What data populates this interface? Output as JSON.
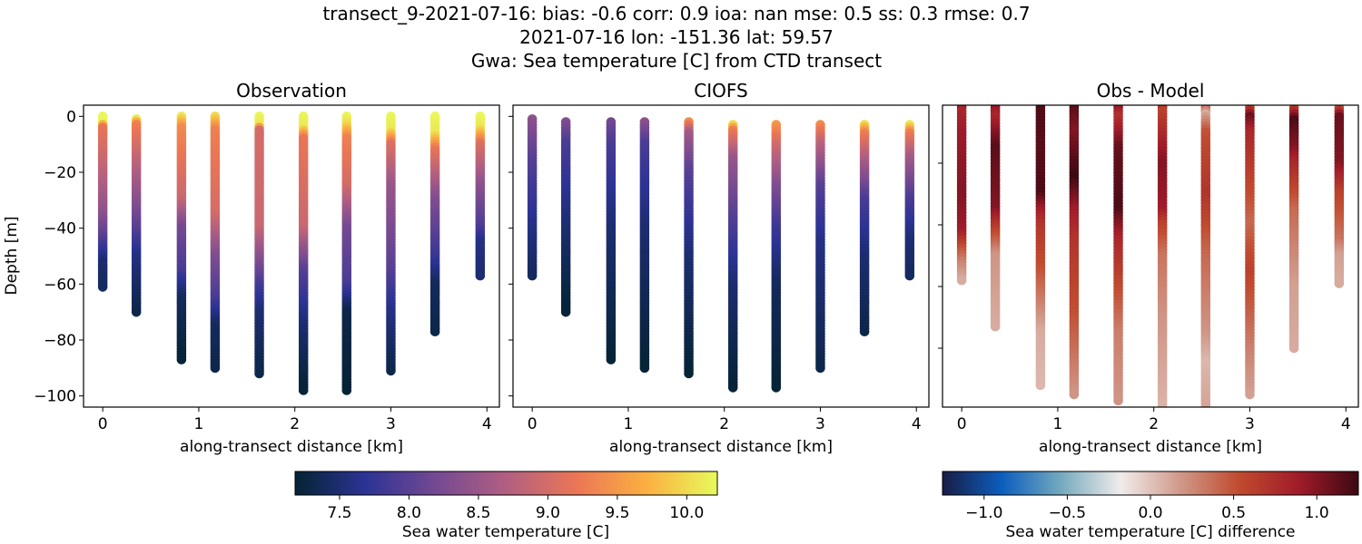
{
  "title_lines": [
    "transect_9-2021-07-16: bias: -0.6  corr: 0.9  ioa: nan  mse: 0.5  ss: 0.3  rmse: 0.7",
    "2021-07-16 lon: -151.36 lat: 59.57",
    "Gwa: Sea temperature [C] from CTD transect"
  ],
  "chart_data": [
    {
      "type": "scatter",
      "title": "Observation",
      "xlabel": "along-transect distance [km]",
      "ylabel": "Depth [m]",
      "xlim": [
        -0.2,
        4.13
      ],
      "ylim": [
        -104,
        4
      ],
      "xticks": [
        "0",
        "1",
        "2",
        "3",
        "4"
      ],
      "yticks": [
        "0",
        "−20",
        "−40",
        "−60",
        "−80",
        "−100"
      ],
      "colormap": "thermal",
      "vmin": 7.18,
      "vmax": 10.22,
      "stations": [
        {
          "x": 0.0,
          "profile": [
            [
              0,
              10.2
            ],
            [
              2,
              10.2
            ],
            [
              4,
              9.2
            ],
            [
              20,
              8.8
            ],
            [
              35,
              8.4
            ],
            [
              45,
              7.9
            ],
            [
              52,
              7.5
            ],
            [
              61,
              7.4
            ]
          ]
        },
        {
          "x": 0.35,
          "profile": [
            [
              1,
              10.1
            ],
            [
              3,
              9.3
            ],
            [
              20,
              8.7
            ],
            [
              35,
              8.2
            ],
            [
              50,
              7.6
            ],
            [
              70,
              7.3
            ]
          ]
        },
        {
          "x": 0.82,
          "profile": [
            [
              0,
              10.1
            ],
            [
              4,
              9.4
            ],
            [
              30,
              8.9
            ],
            [
              40,
              8.2
            ],
            [
              55,
              7.9
            ],
            [
              65,
              7.4
            ],
            [
              87,
              7.2
            ]
          ]
        },
        {
          "x": 1.17,
          "profile": [
            [
              0,
              10.0
            ],
            [
              5,
              9.3
            ],
            [
              35,
              9.0
            ],
            [
              50,
              8.3
            ],
            [
              65,
              7.9
            ],
            [
              75,
              7.4
            ],
            [
              90,
              7.3
            ]
          ]
        },
        {
          "x": 1.63,
          "profile": [
            [
              0,
              10.2
            ],
            [
              3,
              10.1
            ],
            [
              5,
              9.0
            ],
            [
              40,
              8.9
            ],
            [
              60,
              7.9
            ],
            [
              70,
              7.5
            ],
            [
              92,
              7.3
            ]
          ]
        },
        {
          "x": 2.09,
          "profile": [
            [
              0,
              10.2
            ],
            [
              4,
              10.1
            ],
            [
              8,
              9.2
            ],
            [
              40,
              8.9
            ],
            [
              55,
              8.0
            ],
            [
              75,
              7.5
            ],
            [
              98,
              7.2
            ]
          ]
        },
        {
          "x": 2.54,
          "profile": [
            [
              0,
              10.2
            ],
            [
              3,
              10.0
            ],
            [
              8,
              9.3
            ],
            [
              25,
              9.0
            ],
            [
              40,
              8.2
            ],
            [
              60,
              7.9
            ],
            [
              70,
              7.3
            ],
            [
              98,
              7.2
            ]
          ]
        },
        {
          "x": 3.0,
          "profile": [
            [
              0,
              10.2
            ],
            [
              5,
              10.1
            ],
            [
              10,
              9.1
            ],
            [
              25,
              8.5
            ],
            [
              55,
              8.0
            ],
            [
              70,
              7.6
            ],
            [
              91,
              7.3
            ]
          ]
        },
        {
          "x": 3.46,
          "profile": [
            [
              0,
              10.2
            ],
            [
              6,
              10.1
            ],
            [
              12,
              9.2
            ],
            [
              30,
              8.3
            ],
            [
              50,
              7.8
            ],
            [
              60,
              7.4
            ],
            [
              77,
              7.3
            ]
          ]
        },
        {
          "x": 3.93,
          "profile": [
            [
              0,
              10.2
            ],
            [
              4,
              10.1
            ],
            [
              10,
              9.1
            ],
            [
              25,
              8.4
            ],
            [
              40,
              7.9
            ],
            [
              45,
              7.6
            ],
            [
              57,
              7.5
            ]
          ]
        }
      ]
    },
    {
      "type": "scatter",
      "title": "CIOFS",
      "xlabel": "along-transect distance [km]",
      "xlim": [
        -0.2,
        4.13
      ],
      "ylim": [
        -104,
        4
      ],
      "xticks": [
        "0",
        "1",
        "2",
        "3",
        "4"
      ],
      "colormap": "thermal",
      "vmin": 7.18,
      "vmax": 10.22,
      "stations": [
        {
          "x": 0.0,
          "profile": [
            [
              1,
              8.4
            ],
            [
              15,
              8.0
            ],
            [
              40,
              7.6
            ],
            [
              57,
              7.4
            ]
          ]
        },
        {
          "x": 0.35,
          "profile": [
            [
              2,
              8.3
            ],
            [
              10,
              7.9
            ],
            [
              40,
              7.5
            ],
            [
              70,
              7.2
            ]
          ]
        },
        {
          "x": 0.82,
          "profile": [
            [
              2,
              8.2
            ],
            [
              10,
              7.9
            ],
            [
              40,
              7.5
            ],
            [
              87,
              7.2
            ]
          ]
        },
        {
          "x": 1.17,
          "profile": [
            [
              2,
              8.4
            ],
            [
              10,
              7.9
            ],
            [
              40,
              7.5
            ],
            [
              90,
              7.2
            ]
          ]
        },
        {
          "x": 1.63,
          "profile": [
            [
              2,
              9.4
            ],
            [
              6,
              8.6
            ],
            [
              20,
              8.0
            ],
            [
              50,
              7.5
            ],
            [
              92,
              7.2
            ]
          ]
        },
        {
          "x": 2.09,
          "profile": [
            [
              3,
              10.0
            ],
            [
              5,
              9.3
            ],
            [
              15,
              8.5
            ],
            [
              35,
              8.0
            ],
            [
              60,
              7.5
            ],
            [
              97,
              7.2
            ]
          ]
        },
        {
          "x": 2.54,
          "profile": [
            [
              3,
              9.5
            ],
            [
              10,
              9.0
            ],
            [
              25,
              8.3
            ],
            [
              40,
              7.8
            ],
            [
              60,
              7.4
            ],
            [
              97,
              7.2
            ]
          ]
        },
        {
          "x": 3.0,
          "profile": [
            [
              3,
              9.4
            ],
            [
              10,
              8.8
            ],
            [
              25,
              8.0
            ],
            [
              45,
              7.6
            ],
            [
              90,
              7.3
            ]
          ]
        },
        {
          "x": 3.46,
          "profile": [
            [
              3,
              10.0
            ],
            [
              6,
              9.3
            ],
            [
              15,
              8.7
            ],
            [
              30,
              7.9
            ],
            [
              50,
              7.5
            ],
            [
              77,
              7.3
            ]
          ]
        },
        {
          "x": 3.93,
          "profile": [
            [
              3,
              10.1
            ],
            [
              6,
              9.3
            ],
            [
              15,
              8.6
            ],
            [
              30,
              7.9
            ],
            [
              45,
              7.5
            ],
            [
              57,
              7.4
            ]
          ]
        }
      ]
    },
    {
      "type": "scatter",
      "title": "Obs - Model",
      "xlabel": "along-transect distance [km]",
      "xlim": [
        -0.2,
        4.13
      ],
      "ylim": [
        -99.1,
        -1.2
      ],
      "xticks": [
        "0",
        "1",
        "2",
        "3",
        "4"
      ],
      "colormap": "balance",
      "vmin": -1.25,
      "vmax": 1.25,
      "stations": [
        {
          "x": 0.0,
          "profile": [
            [
              -1,
              1.2
            ],
            [
              3,
              0.8
            ],
            [
              10,
              0.9
            ],
            [
              30,
              1.0
            ],
            [
              42,
              0.9
            ],
            [
              48,
              0.5
            ],
            [
              52,
              0.3
            ],
            [
              58,
              0.1
            ]
          ]
        },
        {
          "x": 0.35,
          "profile": [
            [
              -1,
              1.1
            ],
            [
              5,
              0.8
            ],
            [
              15,
              1.15
            ],
            [
              35,
              1.0
            ],
            [
              42,
              0.6
            ],
            [
              50,
              0.2
            ],
            [
              73,
              0.1
            ]
          ]
        },
        {
          "x": 0.82,
          "profile": [
            [
              -1,
              1.2
            ],
            [
              15,
              1.15
            ],
            [
              30,
              1.2
            ],
            [
              35,
              0.9
            ],
            [
              40,
              0.7
            ],
            [
              55,
              0.5
            ],
            [
              65,
              0.3
            ],
            [
              75,
              0.1
            ],
            [
              92,
              0.05
            ]
          ]
        },
        {
          "x": 1.17,
          "profile": [
            [
              -1,
              1.2
            ],
            [
              10,
              1.0
            ],
            [
              25,
              1.25
            ],
            [
              35,
              0.9
            ],
            [
              45,
              0.7
            ],
            [
              70,
              0.5
            ],
            [
              95,
              0.2
            ]
          ]
        },
        {
          "x": 1.63,
          "profile": [
            [
              -1,
              1.2
            ],
            [
              5,
              0.7
            ],
            [
              15,
              1.1
            ],
            [
              35,
              1.2
            ],
            [
              45,
              0.8
            ],
            [
              60,
              0.55
            ],
            [
              75,
              0.3
            ],
            [
              97,
              0.2
            ]
          ]
        },
        {
          "x": 2.09,
          "profile": [
            [
              -1,
              1.2
            ],
            [
              3,
              0.6
            ],
            [
              20,
              1.0
            ],
            [
              35,
              0.9
            ],
            [
              40,
              0.6
            ],
            [
              50,
              0.35
            ],
            [
              70,
              0.2
            ],
            [
              103,
              0.05
            ]
          ]
        },
        {
          "x": 2.54,
          "profile": [
            [
              2,
              0.4
            ],
            [
              4,
              0.1
            ],
            [
              10,
              0.5
            ],
            [
              30,
              0.7
            ],
            [
              50,
              0.4
            ],
            [
              75,
              0.2
            ],
            [
              85,
              0.05
            ],
            [
              103,
              0.15
            ]
          ]
        },
        {
          "x": 3.0,
          "profile": [
            [
              2,
              0.6
            ],
            [
              5,
              1.1
            ],
            [
              10,
              0.8
            ],
            [
              25,
              0.6
            ],
            [
              40,
              0.4
            ],
            [
              55,
              0.6
            ],
            [
              80,
              0.3
            ],
            [
              95,
              0.15
            ]
          ]
        },
        {
          "x": 3.46,
          "profile": [
            [
              2,
              0.6
            ],
            [
              6,
              1.2
            ],
            [
              15,
              1.0
            ],
            [
              20,
              0.8
            ],
            [
              35,
              0.4
            ],
            [
              60,
              0.15
            ],
            [
              80,
              0.1
            ]
          ]
        },
        {
          "x": 3.93,
          "profile": [
            [
              2,
              0.5
            ],
            [
              5,
              1.1
            ],
            [
              20,
              1.0
            ],
            [
              30,
              0.6
            ],
            [
              45,
              0.35
            ],
            [
              50,
              0.15
            ],
            [
              59,
              0.1
            ]
          ]
        }
      ]
    }
  ],
  "colorbars": [
    {
      "label": "Sea water temperature [C]",
      "range": [
        7.18,
        10.22
      ],
      "ticks": [
        7.5,
        8.0,
        8.5,
        9.0,
        9.5,
        10.0
      ],
      "tick_labels": [
        "7.5",
        "8.0",
        "8.5",
        "9.0",
        "9.5",
        "10.0"
      ],
      "colors": [
        "#042333",
        "#2c3395",
        "#744992",
        "#b15f82",
        "#eb7655",
        "#fbb042",
        "#e8fa5b"
      ]
    },
    {
      "label": "Sea water temperature [C] difference",
      "range": [
        -1.25,
        1.25
      ],
      "ticks": [
        -1.0,
        -0.5,
        0.0,
        0.5,
        1.0
      ],
      "tick_labels": [
        "−1.0",
        "−0.5",
        "0.0",
        "0.5",
        "1.0"
      ],
      "colors": [
        "#181c43",
        "#0c5ebe",
        "#75aabe",
        "#f1eceb",
        "#d0998a",
        "#c04a2e",
        "#a01b2a",
        "#3c0912"
      ]
    }
  ]
}
